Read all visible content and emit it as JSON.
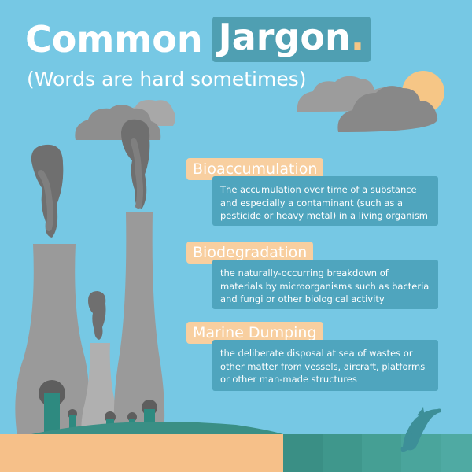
{
  "title": {
    "word1": "Common",
    "word2": "Jargon",
    "dot": "."
  },
  "subtitle": "(Words are hard sometimes)",
  "terms": [
    {
      "term": "Bioaccumulation",
      "definition": "The accumulation over time of a substance and especially a contaminant (such as a pesticide or heavy metal) in a living organism"
    },
    {
      "term": "Biodegradation",
      "definition": "the naturally-occurring breakdown of materials by microorganisms such as bacteria and fungi or other biological activity"
    },
    {
      "term": "Marine Dumping",
      "definition": "the deliberate disposal at sea of wastes or other matter from vessels, aircraft, platforms or other man-made structures"
    }
  ],
  "colors": {
    "sky": "#76c8e4",
    "accent": "#4f9fb2",
    "term_tag": "#f8cfa0",
    "definition_box": "#4fa5be",
    "sun": "#f6c686",
    "tower": "#9a9a9a",
    "smoke": "#6f6f6f",
    "sand": "#f6c089",
    "grass": "#3a8f85"
  }
}
